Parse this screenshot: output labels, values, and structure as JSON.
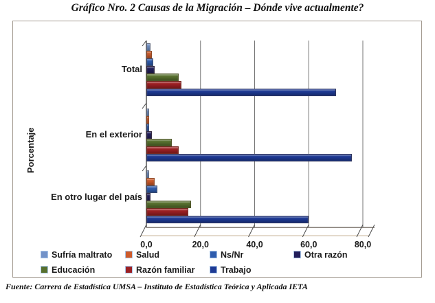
{
  "title": "Gráfico Nro.  2 Causas de la Migración – Dónde vive actualmente?",
  "source": "Fuente: Carrera de Estadística UMSA – Instituto de Estadística Teórica y Aplicada IETA",
  "chart_data": {
    "type": "bar",
    "orientation": "horizontal",
    "ylabel": "Porcentaje",
    "categories": [
      "Total",
      "En el exterior",
      "En otro lugar del país"
    ],
    "series": [
      {
        "name": "Sufría maltrato",
        "color": "#7292c8",
        "values": [
          1.5,
          1.0,
          1.0
        ]
      },
      {
        "name": "Salud",
        "color": "#cd5b2b",
        "values": [
          2.0,
          1.0,
          3.0
        ]
      },
      {
        "name": "Ns/Nr",
        "color": "#2f5cad",
        "values": [
          2.5,
          1.0,
          4.0
        ]
      },
      {
        "name": "Otra razón",
        "color": "#221e5a",
        "values": [
          3.0,
          2.0,
          1.5
        ]
      },
      {
        "name": "Educación",
        "color": "#57702e",
        "values": [
          12.0,
          9.5,
          16.5
        ]
      },
      {
        "name": "Razón familiar",
        "color": "#9c2023",
        "values": [
          13.0,
          12.0,
          15.5
        ]
      },
      {
        "name": "Trabajo",
        "color": "#1e3a94",
        "values": [
          70.0,
          76.0,
          60.0
        ]
      }
    ],
    "xticks": [
      "0,0",
      "20,0",
      "40,0",
      "60,0",
      "80,0"
    ],
    "xlim": [
      0,
      80
    ],
    "grid": "vertical",
    "legend_position": "bottom",
    "legend_rows": [
      [
        "Sufría maltrato",
        "Salud",
        "Ns/Nr",
        "Otra razón"
      ],
      [
        "Educación",
        "Razón familiar",
        "Trabajo"
      ]
    ]
  }
}
